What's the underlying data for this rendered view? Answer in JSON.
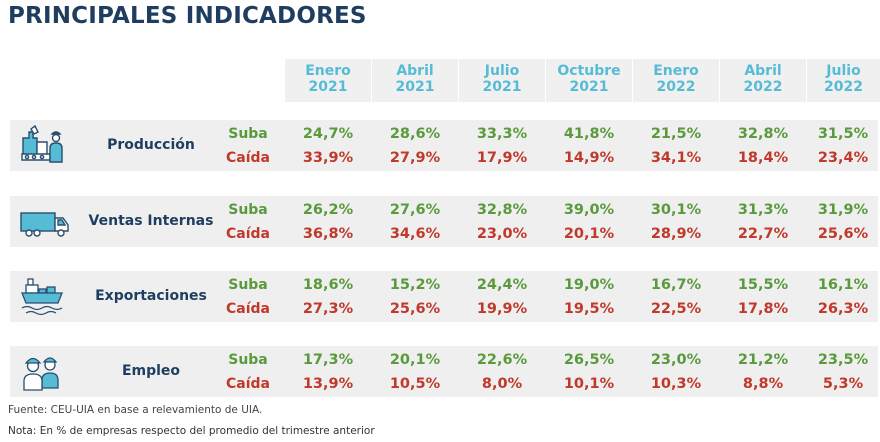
{
  "title": "PRINCIPALES INDICADORES",
  "periods": [
    {
      "month": "Enero",
      "year": "2021"
    },
    {
      "month": "Abril",
      "year": "2021"
    },
    {
      "month": "Julio",
      "year": "2021"
    },
    {
      "month": "Octubre",
      "year": "2021"
    },
    {
      "month": "Enero",
      "year": "2022"
    },
    {
      "month": "Abril",
      "year": "2022"
    },
    {
      "month": "Julio",
      "year": "2022"
    }
  ],
  "labels": {
    "up": "Suba",
    "down": "Caída"
  },
  "indicators": [
    {
      "name": "Producción",
      "icon": "factory-icon",
      "suba": [
        "24,7%",
        "28,6%",
        "33,3%",
        "41,8%",
        "21,5%",
        "32,8%",
        "31,5%"
      ],
      "caida": [
        "33,9%",
        "27,9%",
        "17,9%",
        "14,9%",
        "34,1%",
        "18,4%",
        "23,4%"
      ]
    },
    {
      "name": "Ventas Internas",
      "icon": "truck-icon",
      "suba": [
        "26,2%",
        "27,6%",
        "32,8%",
        "39,0%",
        "30,1%",
        "31,3%",
        "31,9%"
      ],
      "caida": [
        "36,8%",
        "34,6%",
        "23,0%",
        "20,1%",
        "28,9%",
        "22,7%",
        "25,6%"
      ]
    },
    {
      "name": "Exportaciones",
      "icon": "ship-icon",
      "suba": [
        "18,6%",
        "15,2%",
        "24,4%",
        "19,0%",
        "16,7%",
        "15,5%",
        "16,1%"
      ],
      "caida": [
        "27,3%",
        "25,6%",
        "19,9%",
        "19,5%",
        "22,5%",
        "17,8%",
        "26,3%"
      ]
    },
    {
      "name": "Empleo",
      "icon": "workers-icon",
      "suba": [
        "17,3%",
        "20,1%",
        "22,6%",
        "26,5%",
        "23,0%",
        "21,2%",
        "23,5%"
      ],
      "caida": [
        "13,9%",
        "10,5%",
        "8,0%",
        "10,1%",
        "10,3%",
        "8,8%",
        "5,3%"
      ]
    }
  ],
  "footnotes": {
    "source": "Fuente: CEU-UIA en base a relevamiento de UIA.",
    "note": "Nota: En % de empresas respecto del promedio del trimestre anterior"
  },
  "colors": {
    "title": "#1f3d5f",
    "header": "#56bcd6",
    "up": "#5a9a3c",
    "down": "#c0392b",
    "band": "#efefef"
  }
}
